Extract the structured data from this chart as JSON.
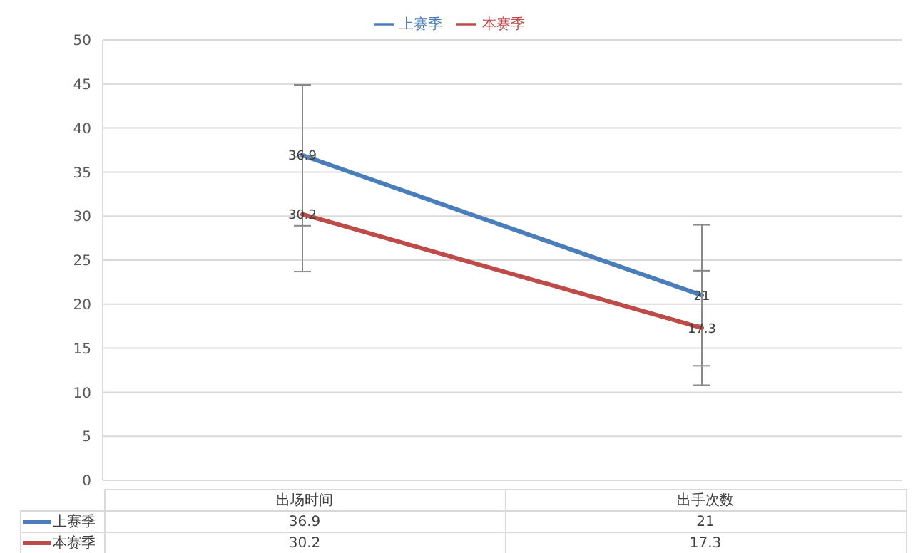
{
  "chart_data": {
    "type": "line",
    "categories": [
      "出场时间",
      "出手次数"
    ],
    "series": [
      {
        "name": "上赛季",
        "color": "#4a7ebb",
        "values": [
          36.9,
          21
        ],
        "errors": [
          8,
          8
        ]
      },
      {
        "name": "本赛季",
        "color": "#be4b48",
        "values": [
          30.2,
          17.3
        ],
        "errors": [
          6.5,
          6.5
        ]
      }
    ],
    "ylim": [
      0,
      50
    ],
    "yticks": [
      0,
      5,
      10,
      15,
      20,
      25,
      30,
      35,
      40,
      45,
      50
    ],
    "grid": "y",
    "legend": "top",
    "marker": "none",
    "line_style": "solid",
    "data_labels": true,
    "annotations": [
      {
        "text": "36.9",
        "x": "出场时间",
        "y": 36.9
      },
      {
        "text": "21",
        "x": "出手次数",
        "y": 21
      },
      {
        "text": "30.2",
        "x": "出场时间",
        "y": 30.2
      },
      {
        "text": "17.3",
        "x": "出手次数",
        "y": 17.3
      }
    ]
  }
}
